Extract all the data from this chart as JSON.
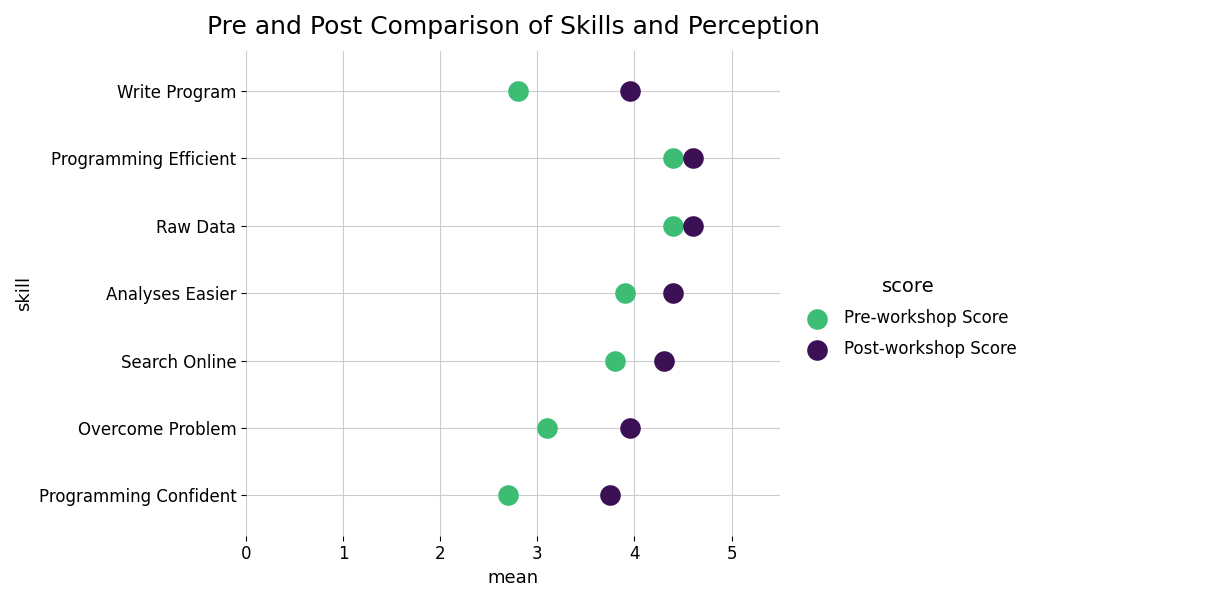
{
  "title": "Pre and Post Comparison of Skills and Perception",
  "xlabel": "mean",
  "ylabel": "skill",
  "skills": [
    "Write Program",
    "Programming Efficient",
    "Raw Data",
    "Analyses Easier",
    "Search Online",
    "Overcome Problem",
    "Programming Confident"
  ],
  "pre_scores": [
    2.8,
    4.4,
    4.4,
    3.9,
    3.8,
    3.1,
    2.7
  ],
  "post_scores": [
    3.95,
    4.6,
    4.6,
    4.4,
    4.3,
    3.95,
    3.75
  ],
  "pre_color": "#3dbc74",
  "post_color": "#3b1055",
  "xlim": [
    0,
    5.5
  ],
  "xticks": [
    0,
    1,
    2,
    3,
    4,
    5
  ],
  "marker_size": 220,
  "legend_title": "score",
  "legend_labels": [
    "Pre-workshop Score",
    "Post-workshop Score"
  ],
  "background_color": "#ffffff",
  "grid_color": "#cccccc",
  "title_fontsize": 18,
  "axis_label_fontsize": 13,
  "tick_fontsize": 12,
  "legend_fontsize": 12
}
